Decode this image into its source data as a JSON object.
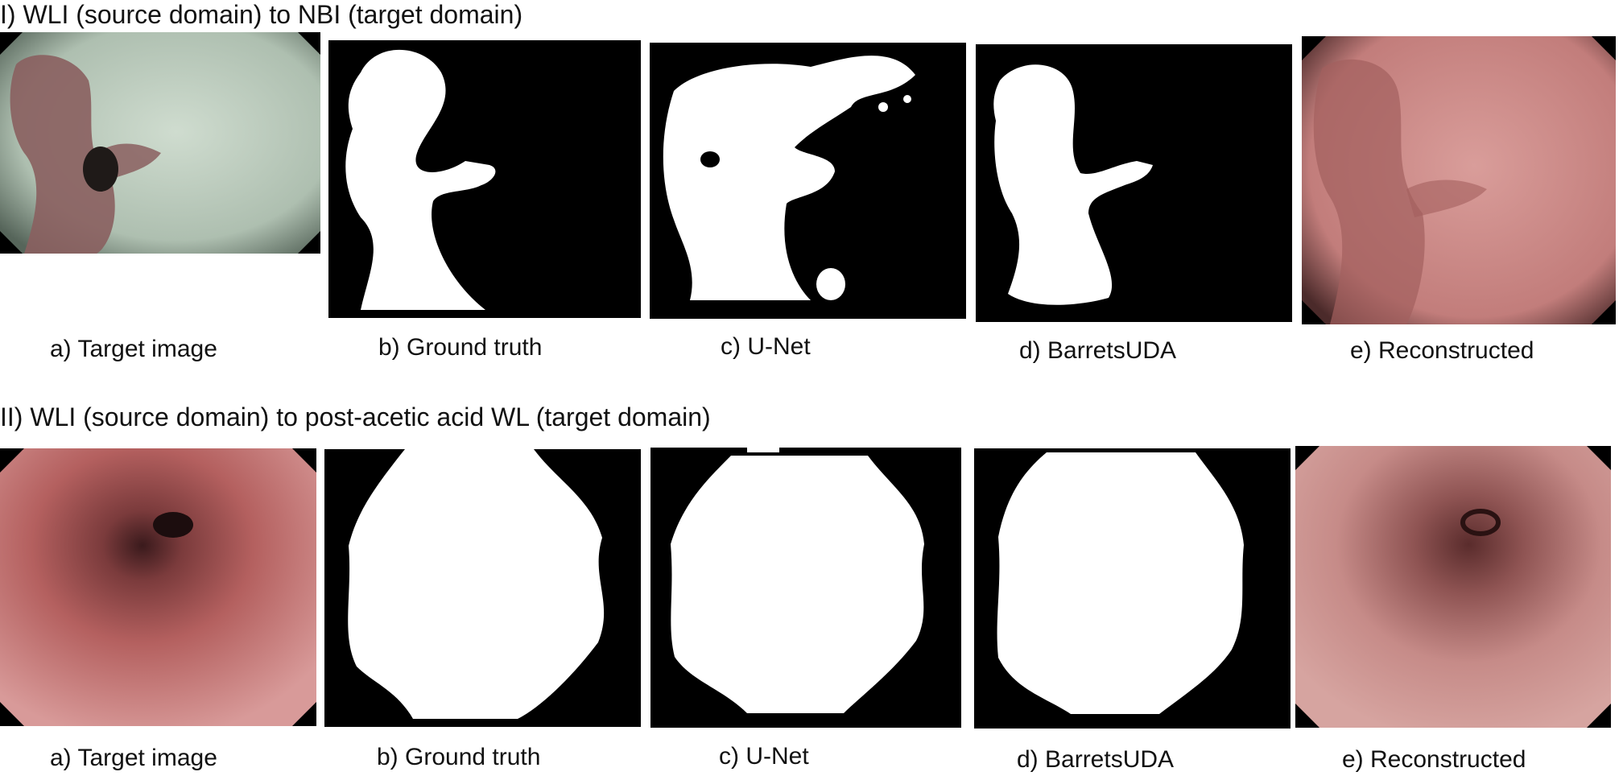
{
  "rows": [
    {
      "title": "I) WLI (source domain) to NBI (target domain)",
      "captions": [
        "a) Target image",
        "b) Ground truth",
        "c) U-Net",
        "d) BarretsUDA",
        "e) Reconstructed"
      ]
    },
    {
      "title": "II) WLI (source domain) to post-acetic acid WL (target domain)",
      "captions": [
        "a) Target image",
        "b) Ground truth",
        "c) U-Net",
        "d) BarretsUDA",
        "e) Reconstructed"
      ]
    }
  ],
  "colors": {
    "nbi_mucosa": "#b9cbbd",
    "nbi_lesion": "#8a5f5f",
    "wl_mucosa": "#c9777a",
    "wl_lumen": "#3a1a1c",
    "recon_tissue": "#c98a88",
    "mask_fg": "#ffffff",
    "mask_bg": "#000000"
  }
}
